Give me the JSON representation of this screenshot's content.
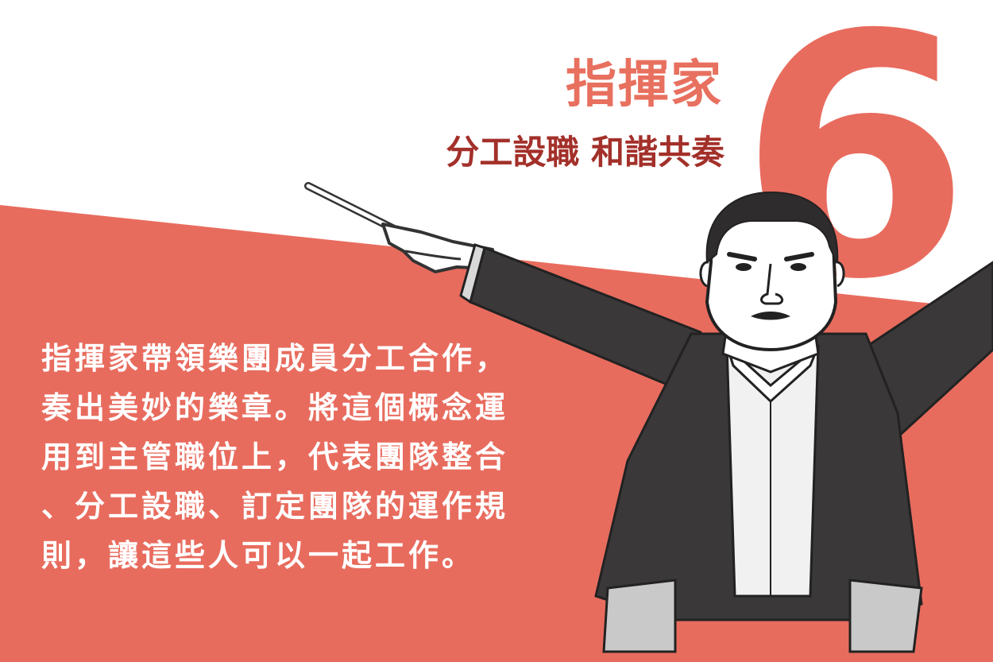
{
  "colors": {
    "background": "#ffffff",
    "accent_band": "#e86c5e",
    "title": "#e8705f",
    "subtitle": "#a3302a",
    "body_text": "#ffffff",
    "jacket": "#3a3838",
    "shirt": "#f1f1f1"
  },
  "heading": {
    "number": "6",
    "title": "指揮家",
    "subtitle": "分工設職 和諧共奏"
  },
  "body": {
    "lines": [
      "指揮家帶領樂團成員分工合作，",
      "奏出美妙的樂章。將這個概念運",
      "用到主管職位上，代表團隊整合",
      "、分工設職、訂定團隊的運作規",
      "則，讓這些人可以一起工作。"
    ]
  },
  "illustration": {
    "subject": "conductor-with-baton-illustration"
  }
}
